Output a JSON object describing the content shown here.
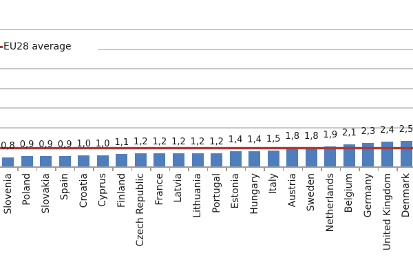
{
  "chart_data": {
    "type": "bar",
    "categories": [
      "Slovenia",
      "Poland",
      "Slovakia",
      "Spain",
      "Croatia",
      "Cyprus",
      "Finland",
      "Czech Republic",
      "France",
      "Latvia",
      "Lithuania",
      "Portugal",
      "Estonia",
      "Hungary",
      "Italy",
      "Austria",
      "Sweden",
      "Netherlands",
      "Belgium",
      "Germany",
      "United Kingdom",
      "Denmark"
    ],
    "values": [
      0.8,
      0.9,
      0.9,
      0.9,
      1.0,
      1.0,
      1.1,
      1.2,
      1.2,
      1.2,
      1.2,
      1.2,
      1.4,
      1.4,
      1.5,
      1.8,
      1.8,
      1.9,
      2.1,
      2.3,
      2.4,
      2.5
    ],
    "values_display": [
      "0,8",
      "0,9",
      "0,9",
      "0,9",
      "1,0",
      "1,0",
      "1,1",
      "1,2",
      "1,2",
      "1,2",
      "1,2",
      "1,2",
      "1,4",
      "1,4",
      "1,5",
      "1,8",
      "1,8",
      "1,9",
      "2,1",
      "2,3",
      "2,4",
      "2,5"
    ],
    "decimal_separator": ",",
    "average_line": {
      "label": "EU28 average",
      "approx_value": 1.7
    },
    "legend_position": "overlapping-plot-left",
    "grid": "horizontal-only",
    "note_crop": "top of chart (title and upper axis) cropped out of view"
  },
  "colors": {
    "bar_fill": "#4e7ebd",
    "average_line": "#aa3b38",
    "gridline": "#c9c9c9",
    "axis": "#9b9b9b",
    "text": "#1a1a1a"
  }
}
